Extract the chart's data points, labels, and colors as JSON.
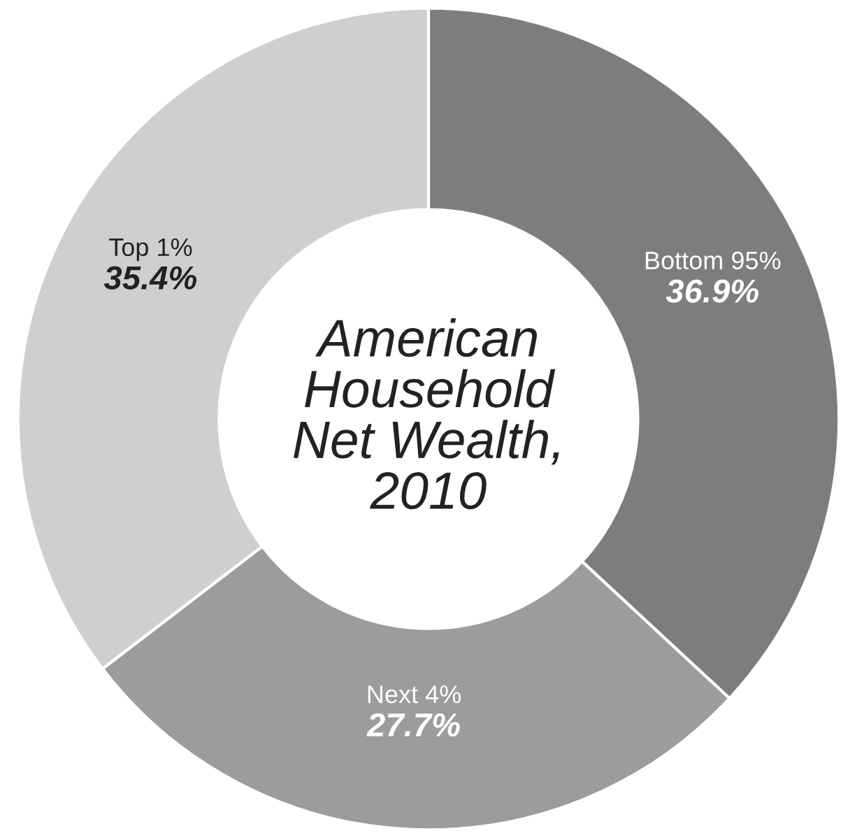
{
  "chart_data": {
    "type": "donut",
    "title": "American\nHousehold\nNet Wealth,\n2010",
    "categories": [
      "Bottom 95%",
      "Next 4%",
      "Top 1%"
    ],
    "values": [
      36.9,
      27.7,
      35.4
    ],
    "value_labels": [
      "36.9%",
      "27.7%",
      "35.4%"
    ],
    "colors": [
      "#7d7d7d",
      "#9c9c9c",
      "#cfcfcf"
    ]
  }
}
